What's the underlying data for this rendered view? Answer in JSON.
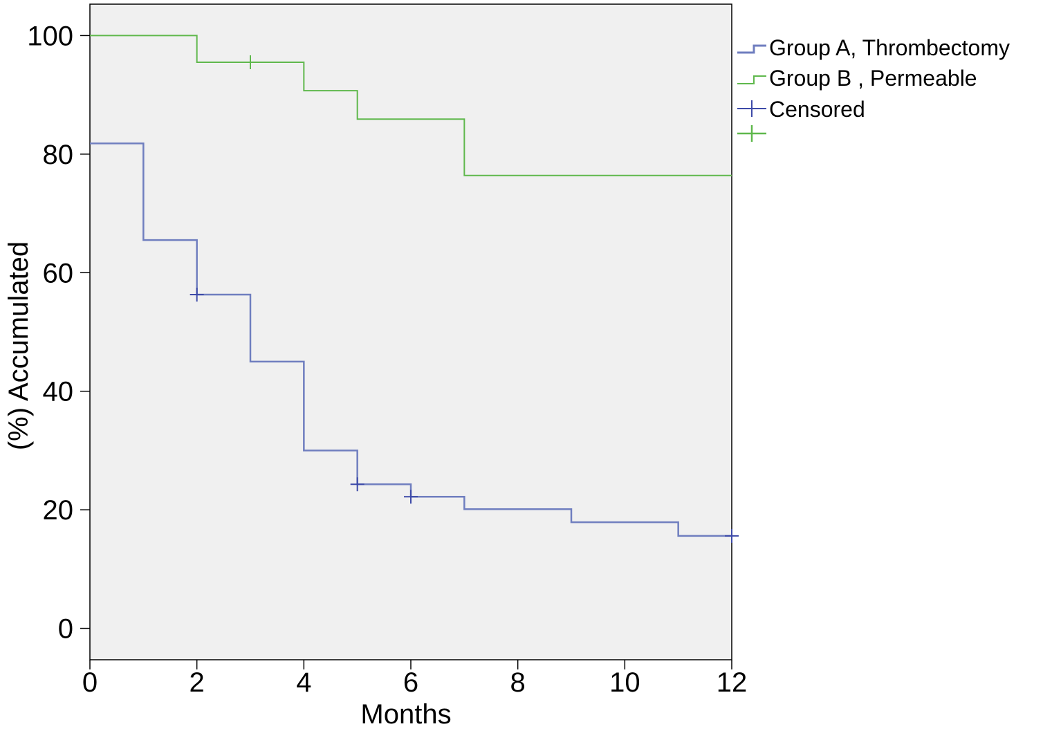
{
  "chart_data": {
    "type": "line",
    "title": "",
    "xlabel": "Months",
    "ylabel": "(%) Accumulated",
    "xlim": [
      0,
      12
    ],
    "ylim": [
      -5.3,
      105.3
    ],
    "x_ticks": [
      0,
      2,
      4,
      6,
      8,
      10,
      12
    ],
    "y_ticks": [
      0,
      20,
      40,
      60,
      80,
      100
    ],
    "grid": false,
    "step": true,
    "legend_position": "right",
    "legend": [
      {
        "label": "Group A, Thrombectomy",
        "symbol": "step",
        "color": "#6f7ebf"
      },
      {
        "label": "Group B , Permeable",
        "symbol": "step",
        "color": "#5fb84c"
      },
      {
        "label": "Censored",
        "symbol": "cross",
        "color": "#3d4aa8"
      },
      {
        "label": "",
        "symbol": "cross",
        "color": "#5fb84c"
      }
    ],
    "series": [
      {
        "name": "Group A, Thrombectomy",
        "color": "#6f7ebf",
        "x": [
          0,
          1,
          2,
          3,
          4,
          5,
          6,
          7,
          9,
          11,
          12
        ],
        "y": [
          81.8,
          65.5,
          56.3,
          45.0,
          30.0,
          24.3,
          22.2,
          20.1,
          17.9,
          15.6,
          15.6
        ],
        "censored": [
          [
            2,
            56.3
          ],
          [
            5,
            24.3
          ],
          [
            6,
            22.2
          ],
          [
            12,
            15.6
          ]
        ]
      },
      {
        "name": "Group B , Permeable",
        "color": "#5fb84c",
        "x": [
          0,
          2,
          4,
          5,
          7,
          12
        ],
        "y": [
          100,
          95.5,
          90.7,
          85.9,
          76.4,
          76.4
        ],
        "censored": [
          [
            3,
            95.5
          ]
        ]
      }
    ],
    "plot_background": "#f0f0f0"
  }
}
